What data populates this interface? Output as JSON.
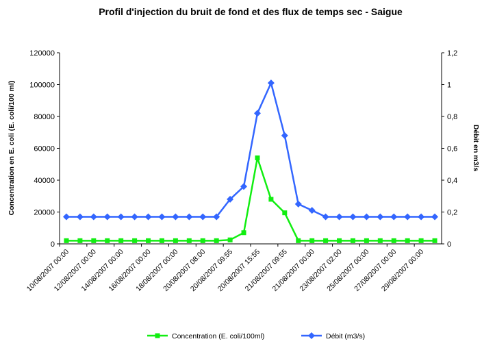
{
  "chart_data": {
    "type": "line",
    "title": "Profil d'injection du bruit de fond et des flux de temps sec - Saigue",
    "ylabel": "Concentration en E. coli (E. coli/100 ml)",
    "y2label": "Débit en m3/s",
    "categories": [
      "10/08/2007 00:00",
      null,
      "12/08/2007 00:00",
      null,
      "14/08/2007 00:00",
      null,
      "16/08/2007 00:00",
      null,
      "18/08/2007 00:00",
      null,
      "20/08/2007 08:00",
      null,
      "20/08/2007 09:55",
      null,
      "20/08/2007 15:55",
      null,
      "21/08/2007 09:55",
      null,
      "21/08/2007 00:00",
      null,
      "23/08/2007 02:00",
      null,
      "25/08/2007 00:00",
      null,
      "27/08/2007 00:00",
      null,
      "29/08/2007 00:00",
      null
    ],
    "series": [
      {
        "name": "Concentration (E. coli/100ml)",
        "color": "#11ee11",
        "marker": "square",
        "values": [
          2000,
          2000,
          2000,
          2000,
          2000,
          2000,
          2000,
          2000,
          2000,
          2000,
          2000,
          2000,
          2500,
          7000,
          54000,
          28000,
          19500,
          2000,
          2000,
          2000,
          2000,
          2000,
          2000,
          2000,
          2000,
          2000,
          2000,
          2000
        ]
      },
      {
        "name": "Débit (m3/s)",
        "color": "#3366ff",
        "marker": "diamond",
        "axis": "y2",
        "values": [
          0.17,
          0.17,
          0.17,
          0.17,
          0.17,
          0.17,
          0.17,
          0.17,
          0.17,
          0.17,
          0.17,
          0.17,
          0.28,
          0.36,
          0.82,
          1.01,
          0.68,
          0.25,
          0.21,
          0.17,
          0.17,
          0.17,
          0.17,
          0.17,
          0.17,
          0.17,
          0.17,
          0.17
        ]
      }
    ],
    "ylim": [
      0,
      120000
    ],
    "yticks": [
      0,
      20000,
      40000,
      60000,
      80000,
      100000,
      120000
    ],
    "y2lim": [
      0,
      1.2
    ],
    "y2ticks": [
      0,
      {
        "value": 0.2,
        "label": "0,2"
      },
      {
        "value": 0.4,
        "label": "0,4"
      },
      {
        "value": 0.6,
        "label": "0,6"
      },
      {
        "value": 0.8,
        "label": "0,8"
      },
      1,
      {
        "value": 1.2,
        "label": "1,2"
      }
    ],
    "legend": "bottom"
  }
}
